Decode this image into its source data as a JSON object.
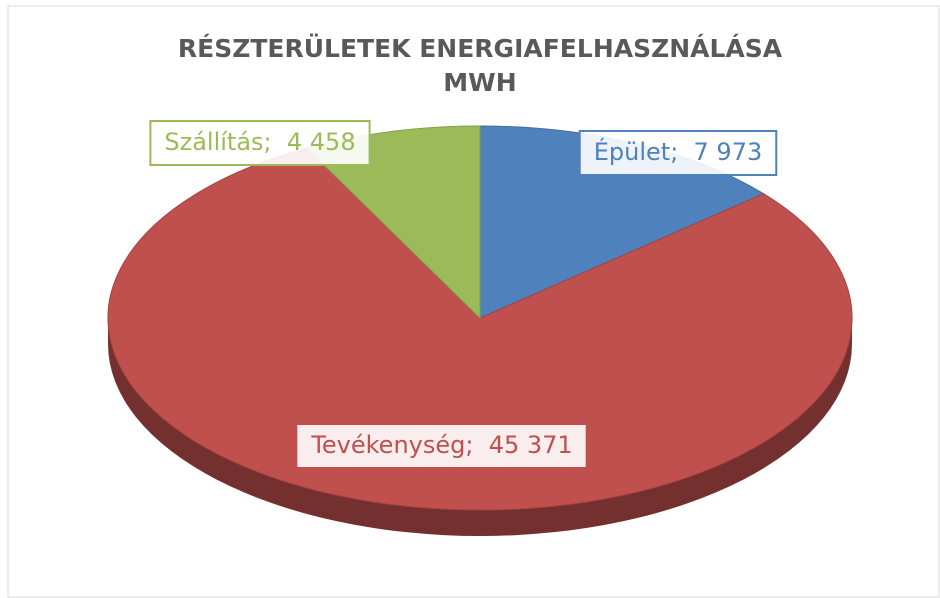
{
  "chart_data": {
    "type": "pie",
    "title": [
      "RÉSZTERÜLETEK ENERGIAFELHASZNÁLÁSA",
      "MWH"
    ],
    "categories": [
      "Épület",
      "Tevékenység",
      "Szállítás"
    ],
    "values": [
      7973,
      45371,
      4458
    ],
    "value_labels": [
      "7 973",
      "45 371",
      "4 458"
    ],
    "label_separator": ";  ",
    "colors": [
      "#4f81bd",
      "#c0504d",
      "#9bbb59"
    ]
  }
}
